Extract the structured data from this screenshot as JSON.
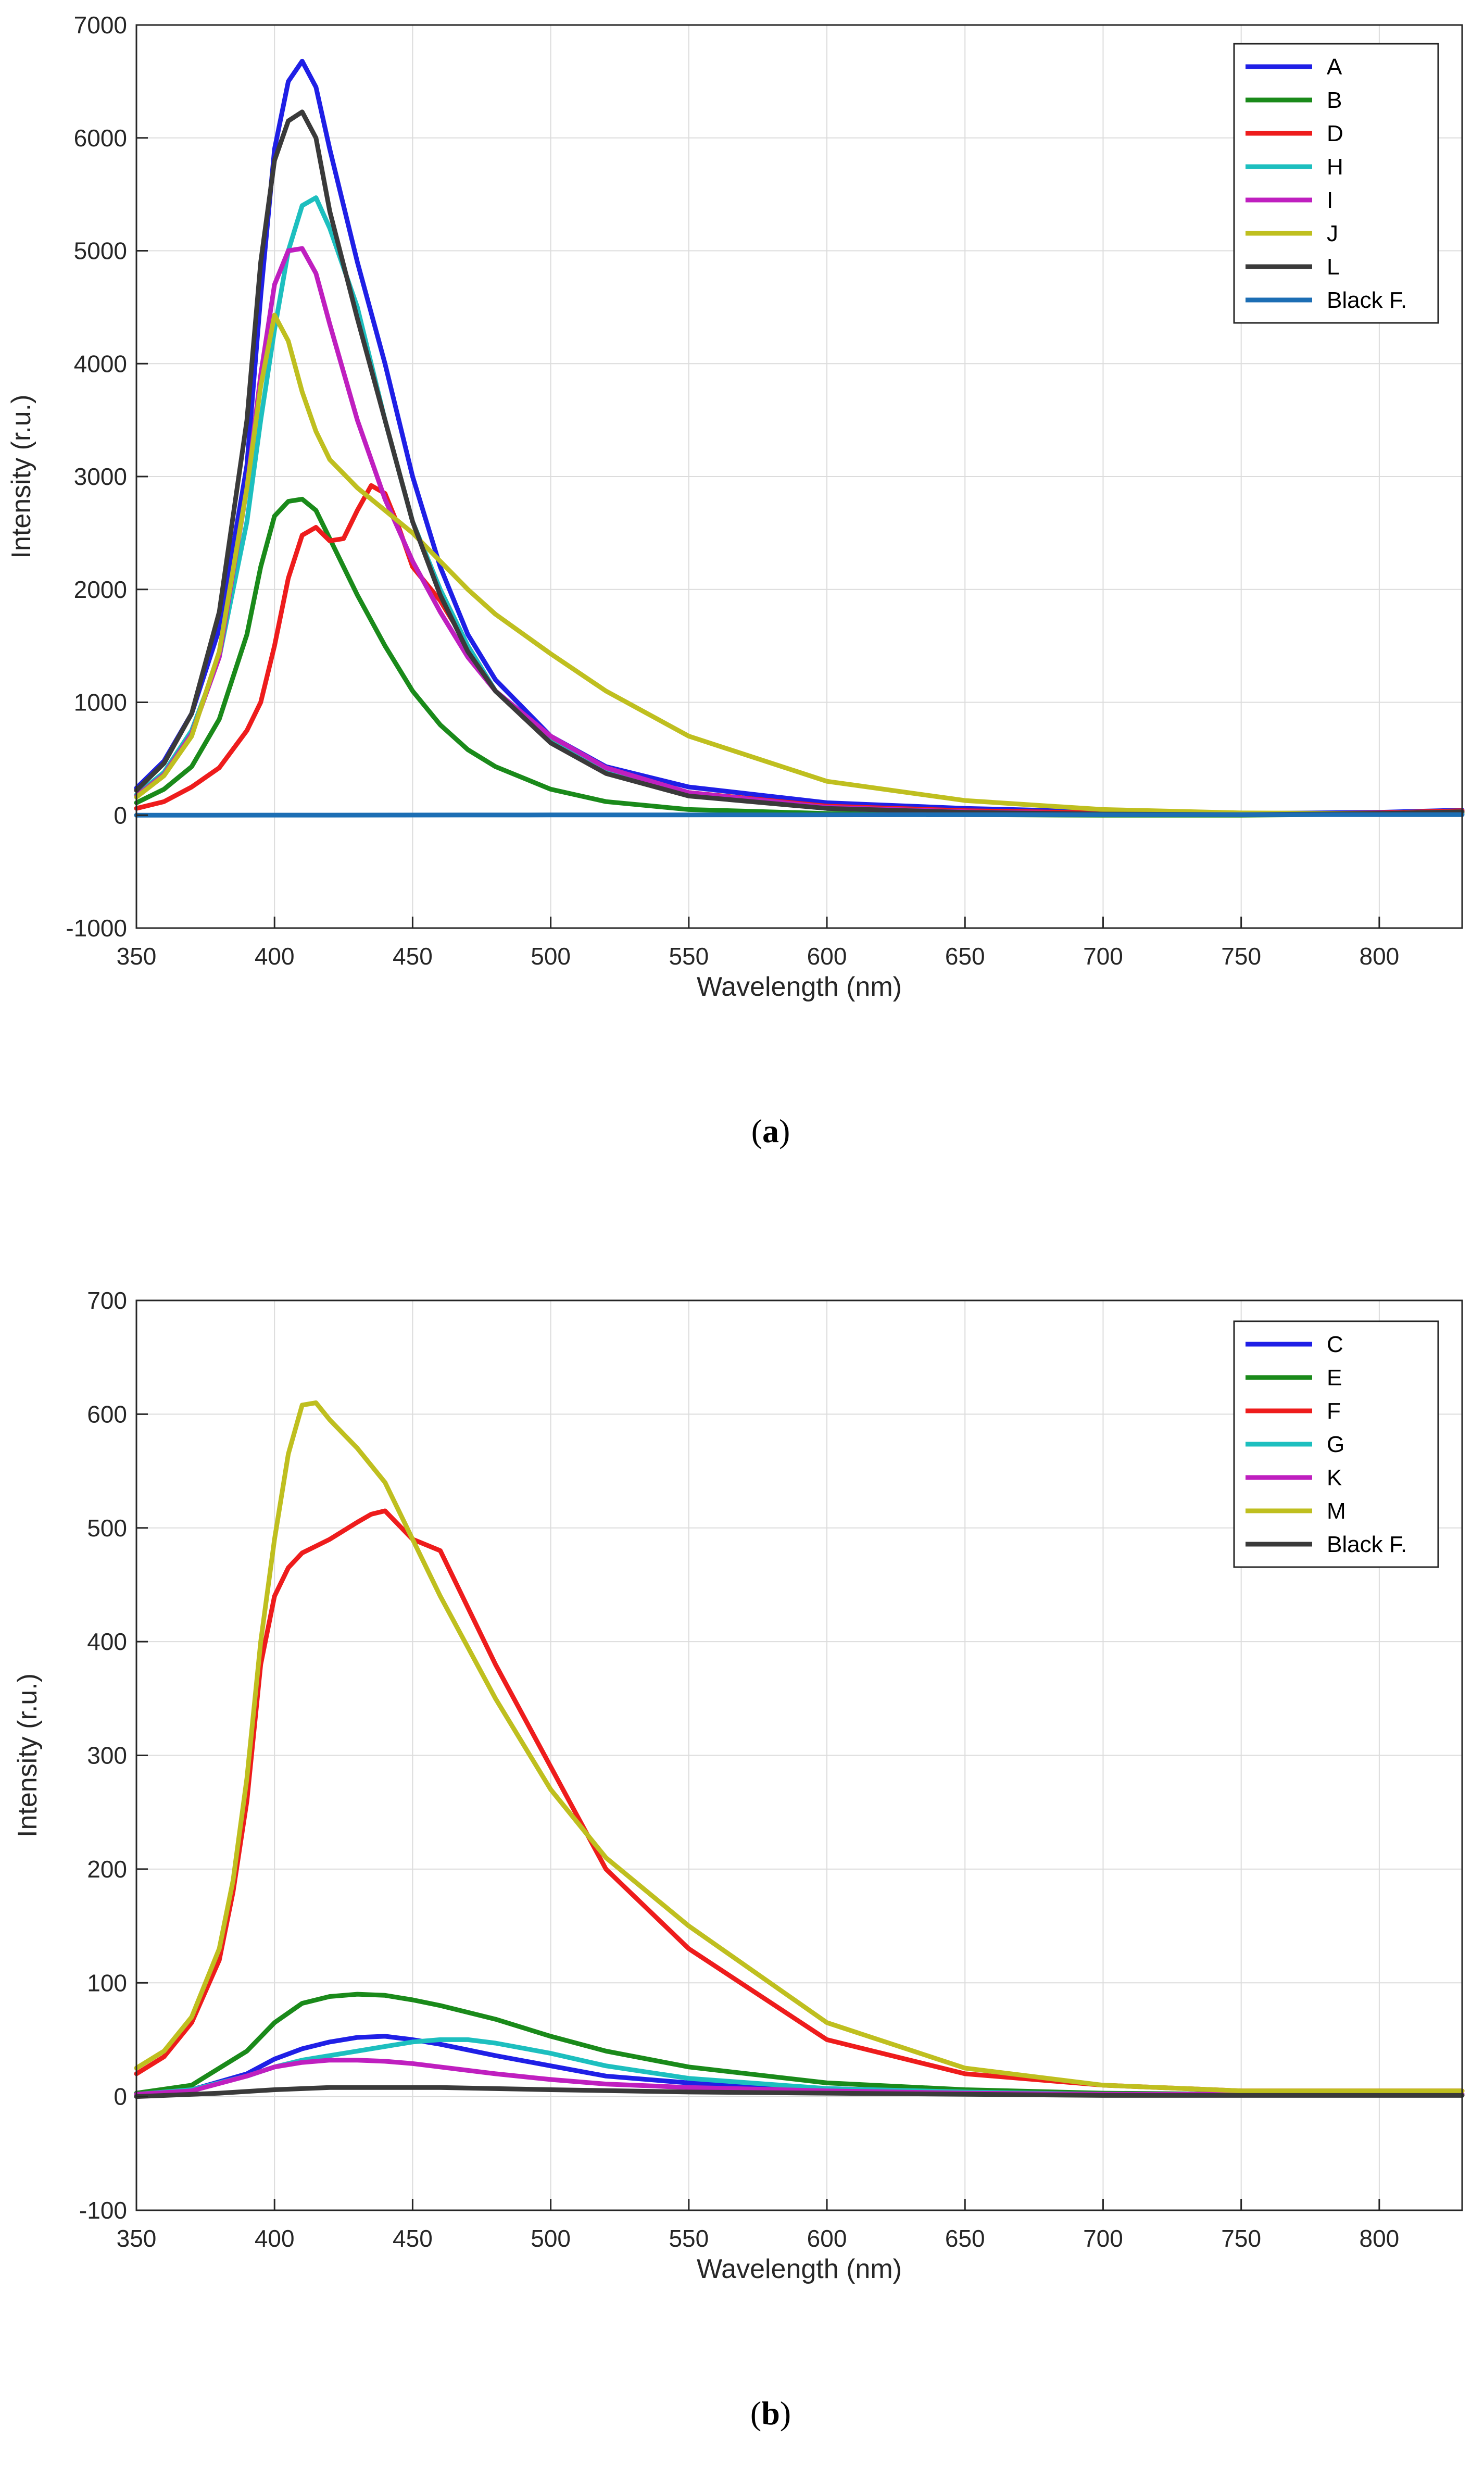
{
  "chart_data": [
    {
      "panel": "a",
      "caption_text": "a",
      "type": "line",
      "title": "",
      "xlabel": "Wavelength (nm)",
      "ylabel": "Intensity (r.u.)",
      "xlim": [
        350,
        830
      ],
      "ylim": [
        -1000,
        7000
      ],
      "xticks": [
        350,
        400,
        450,
        500,
        550,
        600,
        650,
        700,
        750,
        800
      ],
      "yticks": [
        -1000,
        0,
        1000,
        2000,
        3000,
        4000,
        5000,
        6000,
        7000
      ],
      "grid": true,
      "legend_position": "top-right",
      "series": [
        {
          "name": "A",
          "color": "#1f1fe6",
          "x": [
            350,
            360,
            370,
            380,
            390,
            395,
            400,
            405,
            410,
            415,
            420,
            430,
            440,
            450,
            460,
            470,
            480,
            500,
            520,
            550,
            600,
            650,
            700,
            750,
            800,
            830
          ],
          "y": [
            240,
            480,
            900,
            1650,
            3100,
            4600,
            5900,
            6500,
            6680,
            6450,
            5900,
            4900,
            4000,
            3000,
            2200,
            1600,
            1200,
            700,
            430,
            250,
            110,
            60,
            30,
            15,
            25,
            45
          ]
        },
        {
          "name": "B",
          "color": "#1a8a1a",
          "x": [
            350,
            360,
            370,
            380,
            390,
            395,
            400,
            405,
            410,
            415,
            420,
            430,
            440,
            450,
            460,
            470,
            480,
            500,
            520,
            550,
            600,
            650,
            700,
            750,
            800,
            830
          ],
          "y": [
            110,
            230,
            430,
            850,
            1600,
            2200,
            2650,
            2780,
            2800,
            2700,
            2450,
            1950,
            1500,
            1100,
            800,
            580,
            430,
            230,
            120,
            50,
            15,
            5,
            0,
            0,
            10,
            20
          ]
        },
        {
          "name": "D",
          "color": "#ee1c1c",
          "x": [
            350,
            360,
            370,
            380,
            390,
            395,
            400,
            405,
            410,
            415,
            420,
            425,
            430,
            435,
            440,
            445,
            450,
            460,
            470,
            480,
            500,
            520,
            550,
            600,
            650,
            700,
            750,
            800,
            830
          ],
          "y": [
            60,
            120,
            250,
            420,
            750,
            1000,
            1500,
            2100,
            2480,
            2550,
            2430,
            2450,
            2700,
            2920,
            2850,
            2550,
            2200,
            1900,
            1500,
            1100,
            680,
            420,
            200,
            80,
            40,
            20,
            10,
            20,
            40
          ]
        },
        {
          "name": "H",
          "color": "#1dbfbf",
          "x": [
            350,
            360,
            370,
            380,
            390,
            395,
            400,
            405,
            410,
            415,
            420,
            430,
            440,
            450,
            460,
            470,
            480,
            500,
            520,
            550,
            600,
            650,
            700,
            750,
            800,
            830
          ],
          "y": [
            180,
            380,
            750,
            1400,
            2600,
            3500,
            4300,
            5000,
            5400,
            5470,
            5200,
            4500,
            3500,
            2600,
            2000,
            1500,
            1100,
            650,
            380,
            180,
            60,
            25,
            10,
            5,
            15,
            30
          ]
        },
        {
          "name": "I",
          "color": "#bf1fbf",
          "x": [
            350,
            360,
            370,
            380,
            390,
            395,
            400,
            405,
            410,
            415,
            420,
            430,
            440,
            450,
            460,
            470,
            480,
            500,
            520,
            550,
            600,
            650,
            700,
            750,
            800,
            830
          ],
          "y": [
            170,
            360,
            720,
            1400,
            2900,
            3900,
            4700,
            5000,
            5020,
            4800,
            4350,
            3500,
            2800,
            2250,
            1800,
            1400,
            1100,
            700,
            420,
            200,
            70,
            30,
            10,
            5,
            15,
            30
          ]
        },
        {
          "name": "J",
          "color": "#bfbf1f",
          "x": [
            350,
            360,
            370,
            380,
            390,
            395,
            400,
            405,
            410,
            415,
            420,
            430,
            440,
            450,
            460,
            470,
            480,
            500,
            520,
            550,
            600,
            650,
            700,
            750,
            800,
            830
          ],
          "y": [
            160,
            350,
            700,
            1450,
            2900,
            3800,
            4430,
            4200,
            3750,
            3400,
            3150,
            2900,
            2700,
            2500,
            2250,
            2000,
            1780,
            1430,
            1100,
            700,
            300,
            130,
            50,
            20,
            15,
            25
          ]
        },
        {
          "name": "L",
          "color": "#3a3a3a",
          "x": [
            350,
            360,
            370,
            380,
            390,
            395,
            400,
            405,
            410,
            415,
            420,
            430,
            440,
            450,
            460,
            470,
            480,
            500,
            520,
            550,
            600,
            650,
            700,
            750,
            800,
            830
          ],
          "y": [
            220,
            460,
            900,
            1800,
            3500,
            4900,
            5800,
            6150,
            6230,
            6000,
            5350,
            4400,
            3500,
            2600,
            1950,
            1450,
            1100,
            640,
            370,
            170,
            60,
            25,
            10,
            5,
            15,
            30
          ]
        },
        {
          "name": "Black F.",
          "color": "#1c6eb4",
          "x": [
            350,
            500,
            650,
            830
          ],
          "y": [
            0,
            2,
            4,
            5
          ]
        }
      ]
    },
    {
      "panel": "b",
      "caption_text": "b",
      "type": "line",
      "title": "",
      "xlabel": "Wavelength (nm)",
      "ylabel": "Intensity (r.u.)",
      "xlim": [
        350,
        830
      ],
      "ylim": [
        -100,
        700
      ],
      "xticks": [
        350,
        400,
        450,
        500,
        550,
        600,
        650,
        700,
        750,
        800
      ],
      "yticks": [
        -100,
        0,
        100,
        200,
        300,
        400,
        500,
        600,
        700
      ],
      "grid": true,
      "legend_position": "top-right",
      "series": [
        {
          "name": "C",
          "color": "#1f1fe6",
          "x": [
            350,
            370,
            390,
            400,
            410,
            420,
            430,
            440,
            450,
            460,
            480,
            500,
            520,
            550,
            600,
            650,
            700,
            750,
            800,
            830
          ],
          "y": [
            2,
            6,
            20,
            33,
            42,
            48,
            52,
            53,
            50,
            46,
            36,
            27,
            18,
            12,
            7,
            4,
            2,
            2,
            2,
            2
          ]
        },
        {
          "name": "E",
          "color": "#1a8a1a",
          "x": [
            350,
            370,
            390,
            400,
            410,
            420,
            430,
            440,
            450,
            460,
            480,
            500,
            520,
            550,
            600,
            650,
            700,
            750,
            800,
            830
          ],
          "y": [
            3,
            10,
            40,
            65,
            82,
            88,
            90,
            89,
            85,
            80,
            68,
            53,
            40,
            26,
            12,
            6,
            3,
            2,
            2,
            2
          ]
        },
        {
          "name": "F",
          "color": "#ee1c1c",
          "x": [
            350,
            360,
            370,
            380,
            385,
            390,
            395,
            400,
            405,
            410,
            420,
            430,
            435,
            440,
            450,
            460,
            470,
            480,
            500,
            520,
            550,
            600,
            650,
            700,
            750,
            800,
            830
          ],
          "y": [
            20,
            35,
            65,
            120,
            180,
            260,
            380,
            440,
            465,
            478,
            490,
            505,
            512,
            515,
            490,
            480,
            430,
            380,
            290,
            200,
            130,
            50,
            20,
            10,
            5,
            5,
            5
          ]
        },
        {
          "name": "G",
          "color": "#1dbfbf",
          "x": [
            350,
            370,
            390,
            400,
            410,
            420,
            430,
            440,
            450,
            460,
            470,
            480,
            500,
            520,
            550,
            600,
            650,
            700,
            750,
            800,
            830
          ],
          "y": [
            2,
            6,
            18,
            26,
            32,
            36,
            40,
            44,
            48,
            50,
            50,
            47,
            38,
            27,
            16,
            7,
            4,
            2,
            2,
            2,
            2
          ]
        },
        {
          "name": "K",
          "color": "#bf1fbf",
          "x": [
            350,
            370,
            390,
            400,
            410,
            420,
            430,
            440,
            450,
            460,
            480,
            500,
            520,
            550,
            600,
            650,
            700,
            750,
            800,
            830
          ],
          "y": [
            2,
            5,
            18,
            26,
            30,
            32,
            32,
            31,
            29,
            26,
            20,
            15,
            11,
            8,
            5,
            3,
            2,
            2,
            2,
            2
          ]
        },
        {
          "name": "M",
          "color": "#bfbf1f",
          "x": [
            350,
            360,
            370,
            380,
            385,
            390,
            395,
            400,
            405,
            410,
            415,
            420,
            430,
            440,
            450,
            460,
            470,
            480,
            500,
            520,
            550,
            600,
            650,
            700,
            750,
            800,
            830
          ],
          "y": [
            25,
            40,
            70,
            130,
            190,
            280,
            400,
            490,
            565,
            608,
            610,
            595,
            570,
            540,
            490,
            440,
            395,
            350,
            270,
            210,
            150,
            65,
            25,
            10,
            5,
            5,
            5
          ]
        },
        {
          "name": "Black F.",
          "color": "#3a3a3a",
          "x": [
            350,
            380,
            400,
            420,
            440,
            460,
            500,
            550,
            600,
            700,
            830
          ],
          "y": [
            0,
            3,
            6,
            8,
            8,
            8,
            6,
            4,
            3,
            1,
            1
          ]
        }
      ]
    }
  ]
}
